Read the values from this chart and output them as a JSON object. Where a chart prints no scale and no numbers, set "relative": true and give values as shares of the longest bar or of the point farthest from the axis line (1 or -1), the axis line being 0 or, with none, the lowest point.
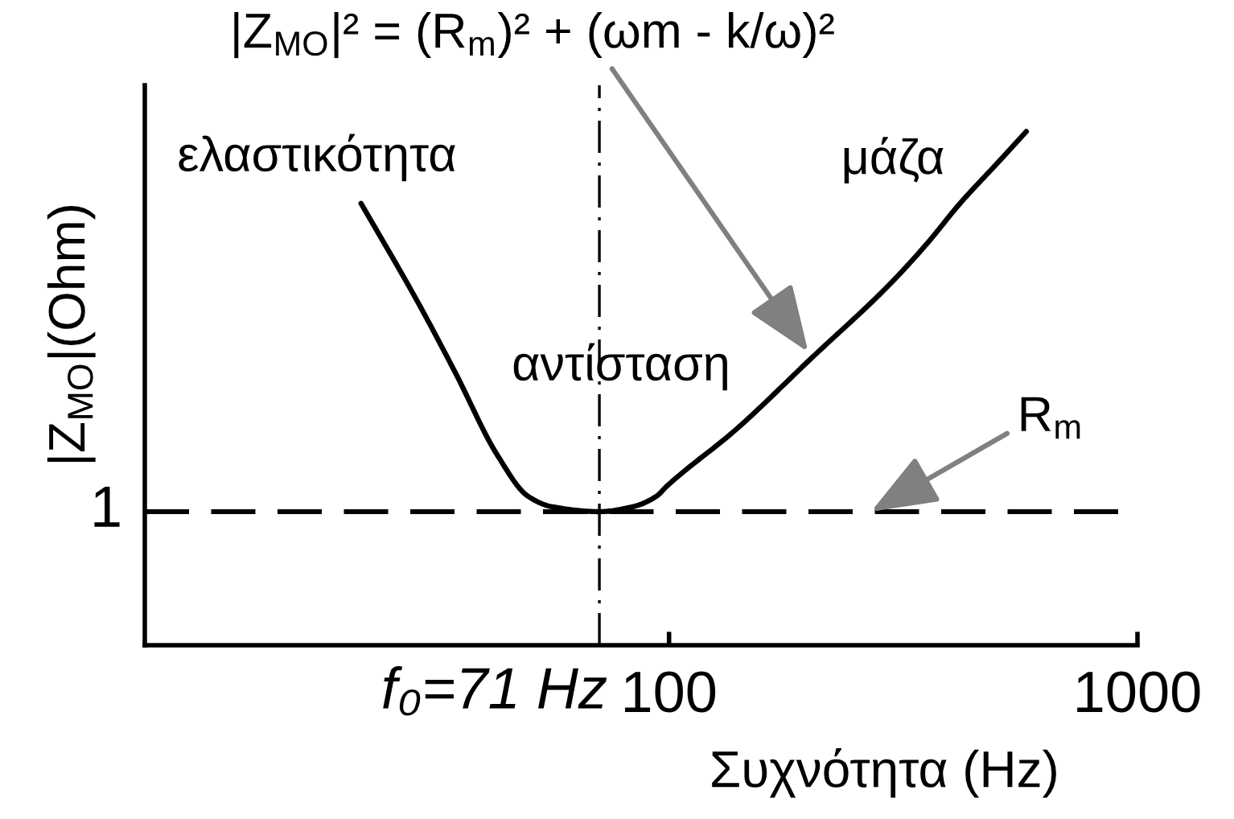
{
  "chart_data": {
    "type": "line",
    "relative": true,
    "log": "x",
    "xlabel": "Συχνότητα (Hz)",
    "ylabel": "|Z$_{MO}$|(Ohm)",
    "xlim": [
      7.6,
      1000
    ],
    "xticks": [
      100,
      1000
    ],
    "x": [
      22,
      29,
      35,
      43,
      50,
      56,
      71,
      84,
      94,
      99,
      139,
      202,
      294,
      354,
      418,
      504,
      579
    ],
    "series": [
      {
        "color": "#000000",
        "values": [
          0.86,
          0.67,
          0.53,
          0.37,
          0.29,
          0.27,
          0.26,
          0.27,
          0.29,
          0.31,
          0.42,
          0.56,
          0.7,
          0.78,
          0.86,
          0.94,
          1.0
        ]
      }
    ],
    "ref_lines": [
      {
        "axis": "y",
        "value": 0.26,
        "line_style": "dashed",
        "color": "#000000"
      },
      {
        "axis": "x",
        "value": 71,
        "label": "f₀=71 Hz",
        "line_style": "dashdot",
        "color": "#000000"
      }
    ],
    "annotations": [
      "1",
      "ελαστικότητα",
      "αντίσταση",
      "μάζα",
      {
        "text": "|Z$_{MO}$|² = (R$_{m}$)² + (ωm - k/ω)²",
        "x": 202,
        "y": 0.56
      },
      {
        "text": "R$_{m}$",
        "x": 270,
        "y": 0.26
      }
    ]
  }
}
